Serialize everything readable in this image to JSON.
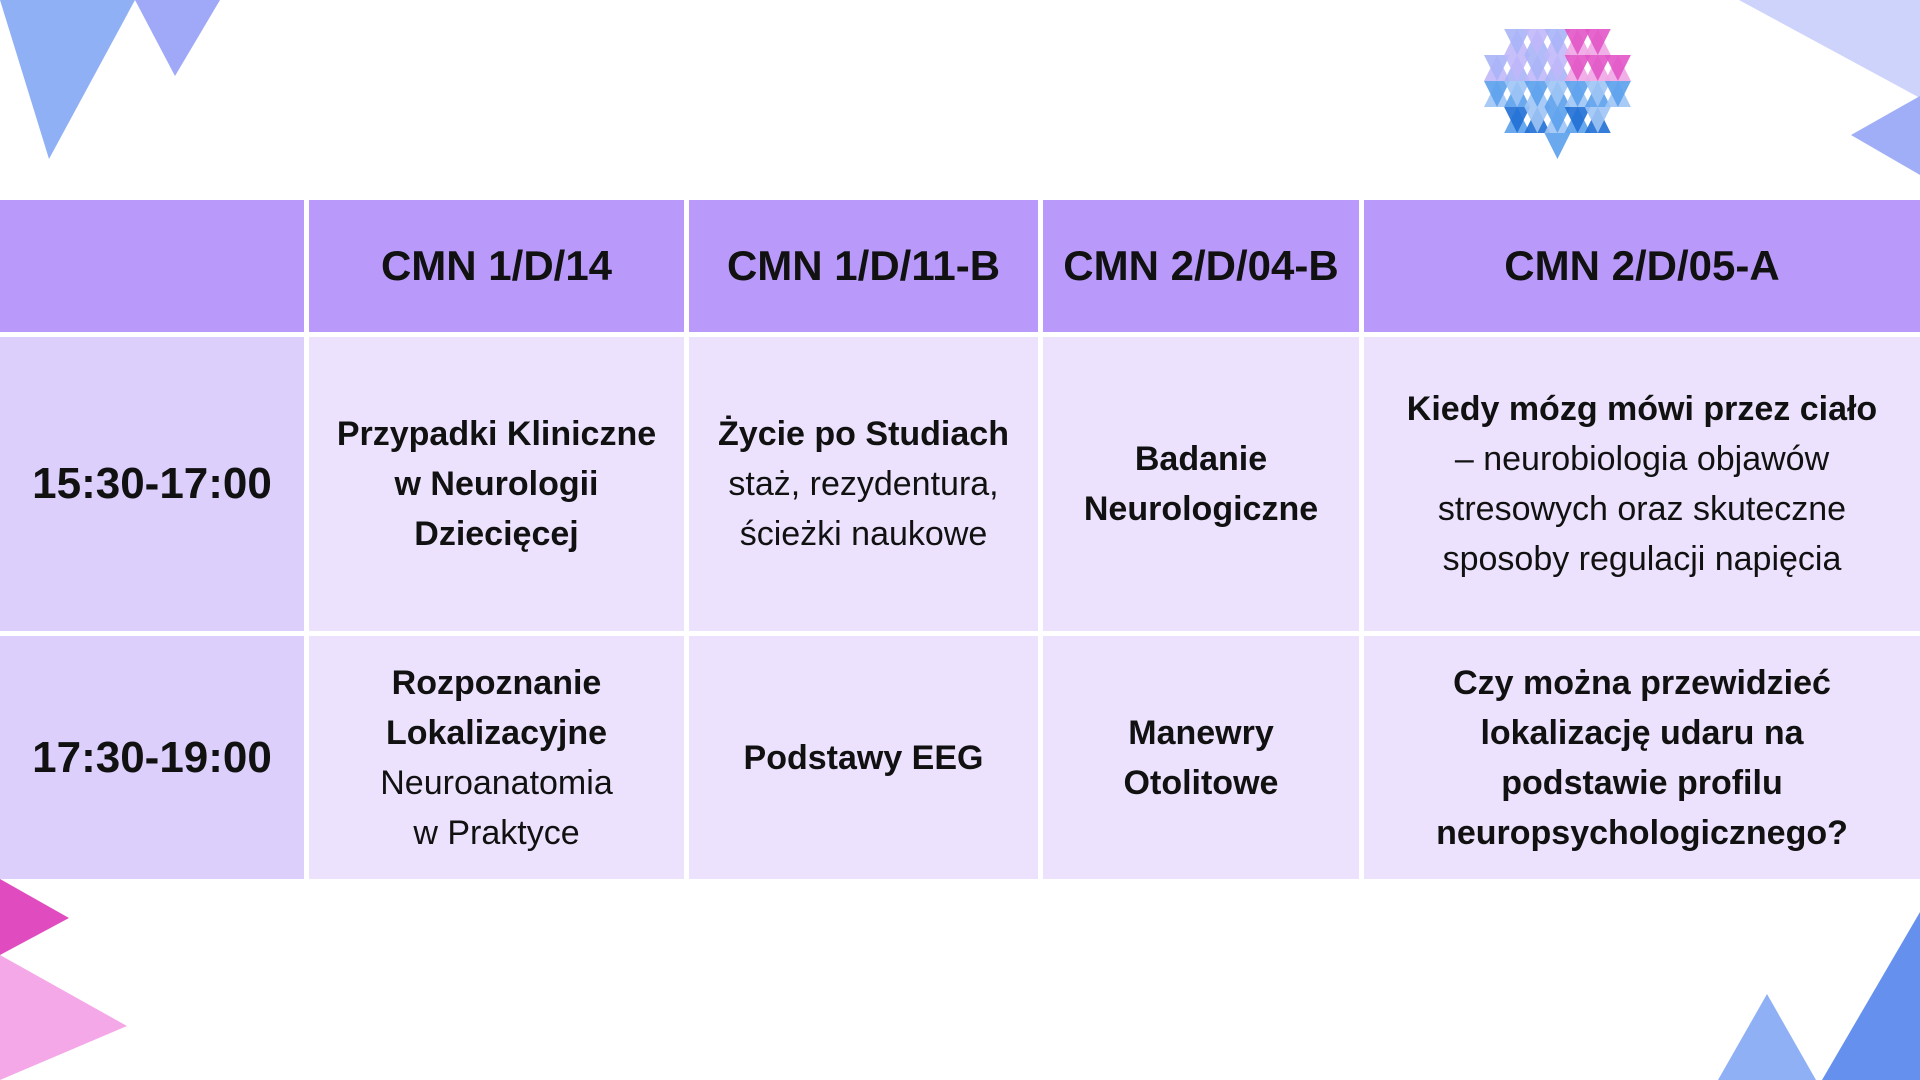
{
  "table": {
    "headers": [
      "CMN 1/D/14",
      "CMN 1/D/11-B",
      "CMN 2/D/04-B",
      "CMN 2/D/05-A"
    ],
    "rows": [
      {
        "time": "15:30-17:00",
        "cells": [
          {
            "title": [
              "Przypadki Kliniczne",
              "w Neurologii",
              "Dziecięcej"
            ]
          },
          {
            "title": [
              "Życie po Studiach"
            ],
            "text": [
              "staż, rezydentura,",
              "ścieżki naukowe"
            ]
          },
          {
            "title": [
              "Badanie",
              "Neurologiczne"
            ]
          },
          {
            "title": [
              "Kiedy mózg mówi przez ciało"
            ],
            "text": [
              "– neurobiologia objawów",
              "stresowych oraz skuteczne",
              "sposoby regulacji napięcia"
            ]
          }
        ]
      },
      {
        "time": "17:30-19:00",
        "cells": [
          {
            "title": [
              "Rozpoznanie",
              "Lokalizacyjne"
            ],
            "text": [
              "Neuroanatomia",
              "w Praktyce"
            ]
          },
          {
            "title": [
              "Podstawy EEG"
            ]
          },
          {
            "title": [
              "Manewry",
              "Otolitowe"
            ]
          },
          {
            "title": [
              "Czy można przewidzieć",
              "lokalizację udaru na",
              "podstawie profilu",
              "neuropsychologicznego?"
            ]
          }
        ]
      }
    ]
  }
}
